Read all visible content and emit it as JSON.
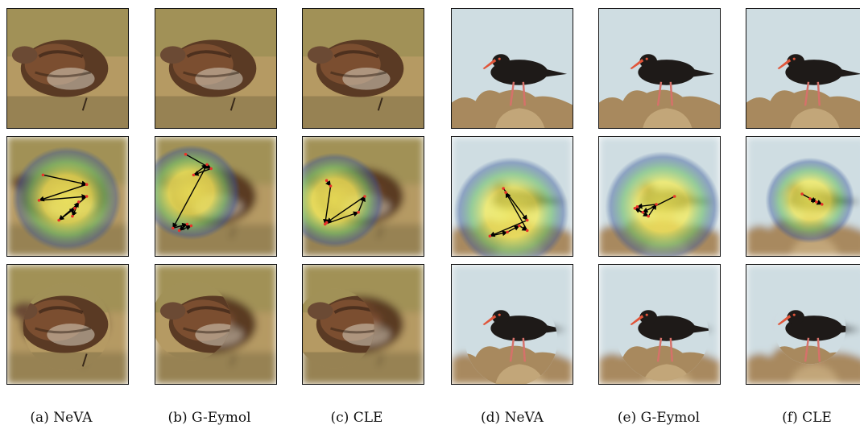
{
  "captions": [
    {
      "label": "(a)",
      "method": "NeVA"
    },
    {
      "label": "(b)",
      "method": "G-Eymol"
    },
    {
      "label": "(c)",
      "method": "CLE"
    },
    {
      "label": "(d)",
      "method": "NeVA"
    },
    {
      "label": "(e)",
      "method": "G-Eymol"
    },
    {
      "label": "(f) ",
      "method": "CLE"
    }
  ],
  "rows": [
    "original-image",
    "saliency-scanpath",
    "foveated-image"
  ],
  "subjects": {
    "left": "quail",
    "right": "oystercatcher"
  },
  "colors": {
    "ground_light": "#b59a63",
    "ground_dark": "#7a6a44",
    "sky": "#cfdde2",
    "rock": "#a8895e",
    "bird_dark": "#1e1a18",
    "beak": "#e0553a",
    "saliency_core": "#f6ee5a",
    "saliency_mid": "#6fbf6a",
    "saliency_outer": "#3a5a9a",
    "fixation": "#e8322a",
    "arrow": "#000000"
  }
}
